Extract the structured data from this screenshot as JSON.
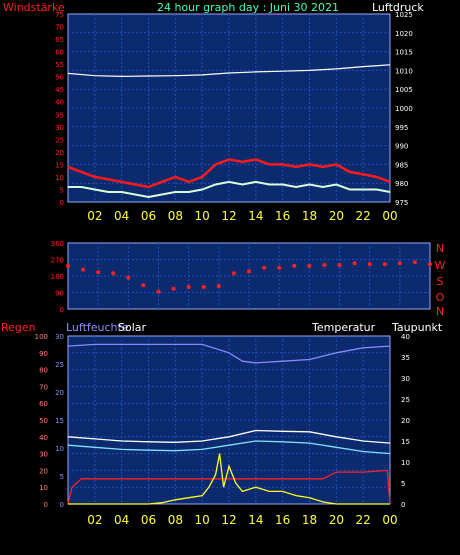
{
  "header": {
    "left_label": "Windstärke",
    "title": "24 hour graph day : Juni 30 2021",
    "right_label": "Luftdruck"
  },
  "direction_labels": [
    "N",
    "W",
    "S",
    "O",
    "N"
  ],
  "bottom_labels": {
    "regen": "Regen",
    "luftfeuchte": "Luftfeuchte",
    "solar": "Solar",
    "temperatur": "Temperatur",
    "taupunkt": "Taupunkt"
  },
  "colors": {
    "background": "#000000",
    "plot_bg": "#0c2a6e",
    "wind_speed": "#ff1a1a",
    "wind_avg": "#1030ff",
    "wind_light": "#d8ffd8",
    "pressure": "#ffffff",
    "wind_dir": "#ff2020",
    "humidity": "#8888ff",
    "temperature": "#ffffff",
    "dewpoint": "#7fe0ff",
    "rain": "#ff2020",
    "solar": "#ffff20",
    "hour_labels": "#ffff40",
    "title": "#40ffc0"
  },
  "chart_data": [
    {
      "type": "line",
      "name": "wind_pressure",
      "x_ticks": [
        "02",
        "04",
        "06",
        "08",
        "10",
        "12",
        "14",
        "16",
        "18",
        "20",
        "22",
        "00"
      ],
      "left_axis": {
        "range": [
          0,
          75
        ],
        "ticks": [
          "75",
          "70",
          "65",
          "60",
          "55",
          "50",
          "45",
          "40",
          "35",
          "30",
          "25",
          "20",
          "15",
          "10",
          "5",
          "0"
        ]
      },
      "right_axis": {
        "range": [
          975,
          1025
        ],
        "ticks": [
          "1025",
          "1020",
          "1015",
          "1010",
          "1005",
          "1000",
          "995",
          "990",
          "985",
          "980",
          "975"
        ]
      },
      "series": [
        {
          "axis": "right",
          "x": [
            0,
            2,
            4,
            6,
            8,
            10,
            12,
            14,
            16,
            18,
            20,
            22,
            24
          ],
          "y": [
            1009.2,
            1008.6,
            1008.4,
            1008.5,
            1008.6,
            1008.8,
            1009.3,
            1009.6,
            1009.8,
            1010.0,
            1010.4,
            1011.0,
            1011.5
          ]
        },
        {
          "axis": "left",
          "x": [
            0,
            1,
            2,
            3,
            4,
            5,
            6,
            7,
            8,
            9,
            10,
            11,
            12,
            13,
            14,
            15,
            16,
            17,
            18,
            19,
            20,
            21,
            22,
            23,
            24
          ],
          "y": [
            14,
            12,
            10,
            9,
            8,
            7,
            6,
            8,
            10,
            8,
            10,
            15,
            17,
            16,
            17,
            15,
            15,
            14,
            15,
            14,
            15,
            12,
            11,
            10,
            8
          ]
        },
        {
          "axis": "left",
          "x": [
            0,
            1,
            2,
            3,
            4,
            5,
            6,
            7,
            8,
            9,
            10,
            11,
            12,
            13,
            14,
            15,
            16,
            17,
            18,
            19,
            20,
            21,
            22,
            23,
            24
          ],
          "y": [
            6,
            6,
            5,
            4,
            4,
            3,
            2,
            3,
            4,
            4,
            5,
            7,
            8,
            7,
            8,
            7,
            7,
            6,
            7,
            6,
            7,
            5,
            5,
            5,
            4
          ]
        }
      ]
    },
    {
      "type": "scatter",
      "name": "wind_direction",
      "x_ticks": [
        "02",
        "04",
        "06",
        "08",
        "10",
        "12",
        "14",
        "16",
        "18",
        "20",
        "22",
        "00"
      ],
      "left_axis": {
        "range": [
          0,
          360
        ],
        "ticks": [
          "360",
          "270",
          "180",
          "90",
          "0"
        ]
      },
      "series": [
        {
          "x": [
            0,
            1,
            2,
            3,
            4,
            5,
            6,
            7,
            8,
            9,
            10,
            11,
            12,
            13,
            14,
            15,
            16,
            17,
            18,
            19,
            20,
            21,
            22,
            23,
            24
          ],
          "y": [
            235,
            215,
            200,
            195,
            170,
            130,
            95,
            110,
            120,
            120,
            125,
            195,
            205,
            225,
            225,
            235,
            235,
            240,
            240,
            250,
            245,
            245,
            250,
            255,
            245
          ]
        }
      ]
    },
    {
      "type": "line",
      "name": "climate",
      "x_ticks": [
        "02",
        "04",
        "06",
        "08",
        "10",
        "12",
        "14",
        "16",
        "18",
        "20",
        "22",
        "00"
      ],
      "rain_axis": {
        "range": [
          0,
          100
        ],
        "ticks": [
          "100",
          "90",
          "80",
          "70",
          "60",
          "50",
          "40",
          "30",
          "20",
          "10",
          "0"
        ]
      },
      "hum_axis": {
        "range": [
          0,
          30
        ],
        "ticks": [
          "30",
          "25",
          "20",
          "15",
          "10",
          "5",
          "0"
        ]
      },
      "temp_axis": {
        "range": [
          0,
          40
        ],
        "ticks": [
          "40",
          "35",
          "30",
          "25",
          "20",
          "15",
          "10",
          "5",
          "0"
        ]
      },
      "series": [
        {
          "axis": "rain",
          "x": [
            0,
            2,
            4,
            6,
            8,
            10,
            12,
            13,
            14,
            16,
            18,
            20,
            22,
            24
          ],
          "y": [
            94,
            95,
            95,
            95,
            95,
            95,
            90,
            85,
            84,
            85,
            86,
            90,
            93,
            94
          ]
        },
        {
          "axis": "temp",
          "x": [
            0,
            2,
            4,
            6,
            8,
            10,
            12,
            14,
            16,
            18,
            20,
            22,
            24
          ],
          "y": [
            16,
            15.5,
            15,
            14.8,
            14.7,
            15,
            16,
            17.5,
            17.3,
            17.2,
            16,
            15,
            14.5
          ]
        },
        {
          "axis": "temp",
          "x": [
            0,
            2,
            4,
            6,
            8,
            10,
            12,
            14,
            16,
            18,
            20,
            22,
            24
          ],
          "y": [
            14,
            13.5,
            13,
            12.8,
            12.7,
            13,
            14,
            15,
            14.8,
            14.5,
            13.5,
            12.5,
            12
          ]
        },
        {
          "axis": "rain",
          "x": [
            0,
            0.3,
            1,
            2,
            4,
            6,
            8,
            10,
            12,
            14,
            16,
            18,
            19,
            20,
            21,
            22,
            23.8,
            24
          ],
          "y": [
            0,
            10,
            15,
            15,
            15,
            15,
            15,
            15,
            15,
            15,
            15,
            15,
            15,
            19,
            19,
            19,
            20,
            0
          ]
        },
        {
          "axis": "temp",
          "x": [
            0,
            5,
            6,
            7,
            8,
            9,
            10,
            10.5,
            11,
            11.3,
            11.6,
            12,
            12.5,
            13,
            14,
            15,
            16,
            17,
            18,
            19,
            20,
            21,
            24
          ],
          "y": [
            0,
            0,
            0,
            0.3,
            1,
            1.5,
            2,
            4,
            7,
            12,
            4,
            9,
            5,
            3,
            4,
            3,
            3,
            2,
            1.5,
            0.5,
            0,
            0,
            0
          ]
        }
      ]
    }
  ]
}
